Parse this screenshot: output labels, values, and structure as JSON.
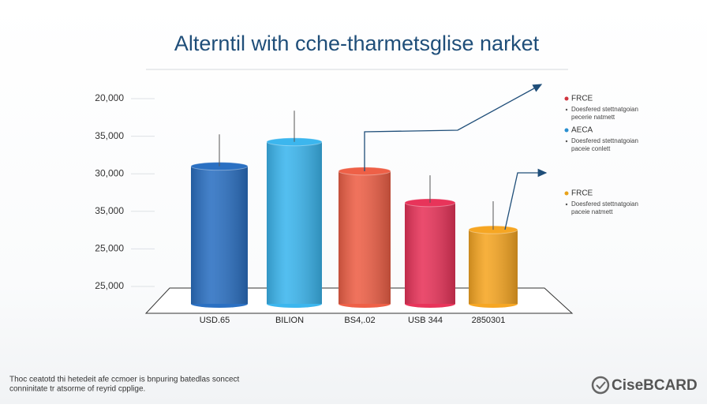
{
  "chart": {
    "type": "bar",
    "title": "Alterntil with cche-tharmetsglise narket",
    "y_axis_labels": [
      "20,000",
      "35,000",
      "30,000",
      "35,000",
      "25,000",
      "25,000"
    ],
    "categories": [
      "USD.65",
      "BILION",
      "BS4,.02",
      "USB 344",
      "2850301"
    ],
    "values": [
      3.2,
      3.85,
      3.07,
      2.23,
      1.51
    ],
    "whisker_tops": [
      4.05,
      4.68,
      null,
      2.96,
      2.27
    ],
    "colors": [
      "#2b70c2",
      "#3cb6ee",
      "#ee6047",
      "#e8345a",
      "#f6a623"
    ],
    "legend": [
      {
        "name": "FRCE",
        "color": "#d0343e",
        "description": [
          "Doesfered stettnatgoian",
          "pecerie natmett"
        ]
      },
      {
        "name": "AECA",
        "color": "#2a8fd0",
        "description": [
          "Doesfered stettnatgoian",
          "paceie conlett"
        ]
      },
      {
        "name": "FRCE",
        "color": "#e8a21a",
        "description": [
          "Doesfered stettnatgoian",
          "paceie natmett"
        ]
      }
    ],
    "footnote": [
      "Thoc ceatotd thi hetedeit afe ccmoer is bnpuring batedlas soncect",
      "conninitate tr atsorme of reyrid cpplige."
    ],
    "brand": "CiseBCARD"
  }
}
